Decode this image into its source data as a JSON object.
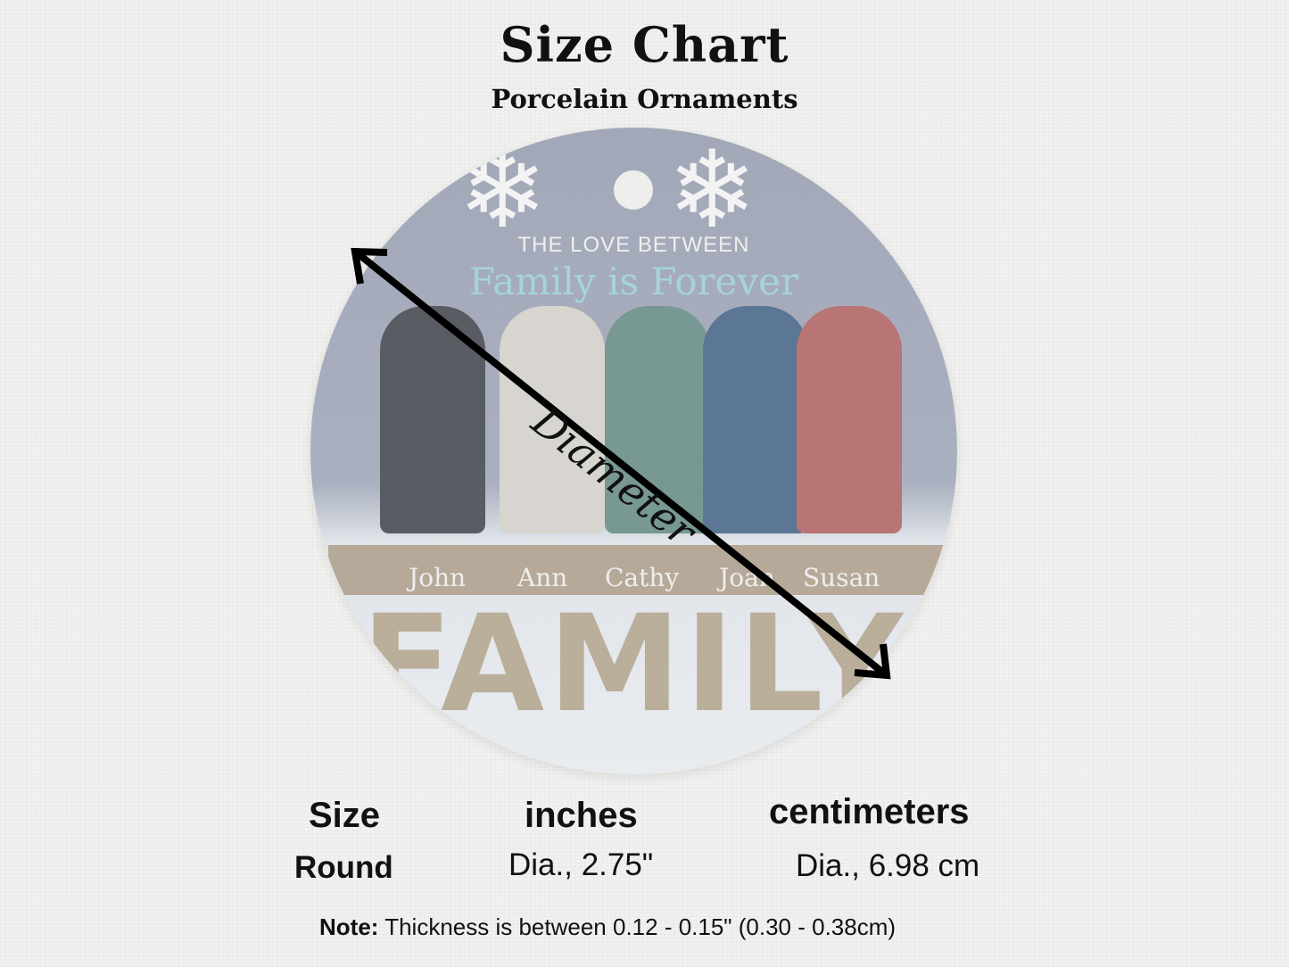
{
  "header": {
    "title": "Size Chart",
    "subtitle": "Porcelain Ornaments"
  },
  "ornament": {
    "line1": "THE LOVE BETWEEN",
    "line2": "Family is Forever",
    "names": [
      "John",
      "Ann",
      "Cathy",
      "Joan",
      "Susan"
    ],
    "word": "FAMILY"
  },
  "diagram": {
    "label": "Diameter"
  },
  "table": {
    "headers": [
      "Size",
      "inches",
      "centimeters"
    ],
    "row": [
      "Round",
      "Dia., 2.75\"",
      "Dia., 6.98 cm"
    ]
  },
  "note": {
    "label": "Note:",
    "text": "Thickness is between 0.12 - 0.15\" (0.30 - 0.38cm)"
  }
}
